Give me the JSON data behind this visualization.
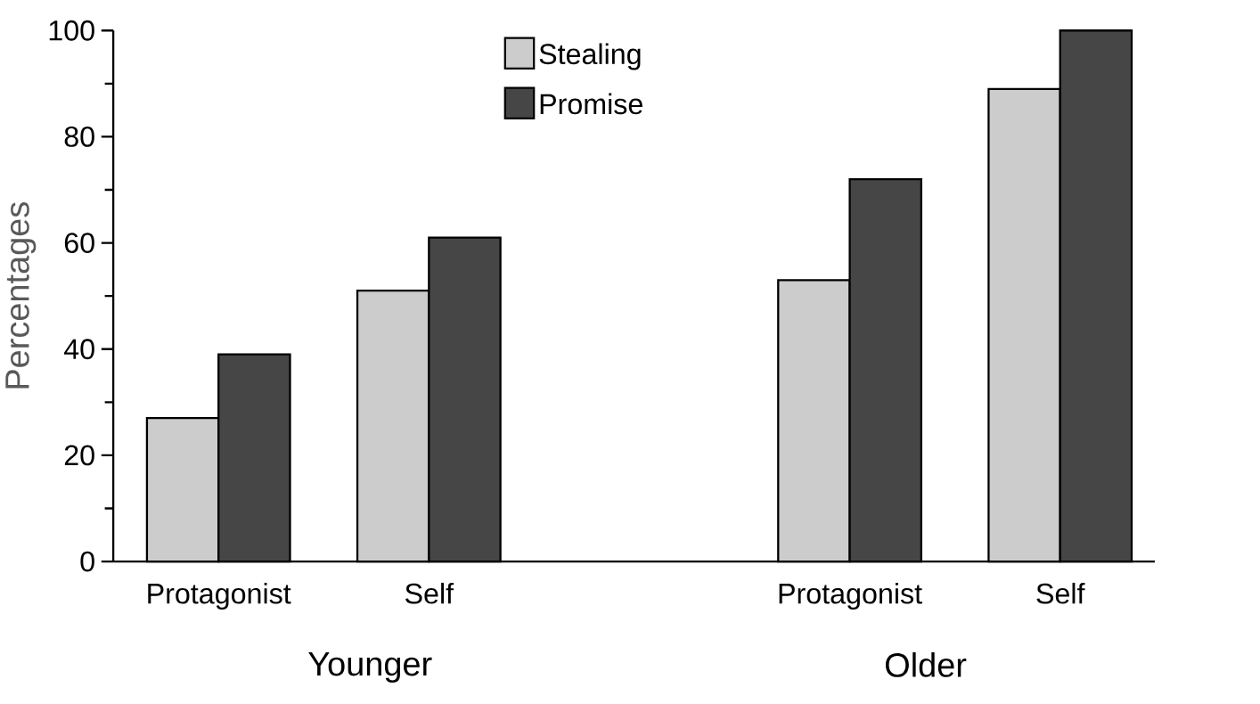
{
  "chart_data": {
    "type": "bar",
    "ylabel": "Percentages",
    "categories": [
      "Protagonist",
      "Self",
      null,
      "Protagonist",
      "Self"
    ],
    "series": [
      {
        "name": "Stealing",
        "color": "#cccccc",
        "values": [
          27,
          51,
          null,
          53,
          89
        ]
      },
      {
        "name": "Promise",
        "color": "#464646",
        "values": [
          39,
          61,
          null,
          72,
          100
        ]
      }
    ],
    "annotations": [
      "Younger",
      "Older"
    ],
    "ylim": [
      0,
      100
    ],
    "yticks": [
      0,
      20,
      40,
      60,
      80,
      100
    ],
    "grid": false,
    "legend": "top"
  }
}
